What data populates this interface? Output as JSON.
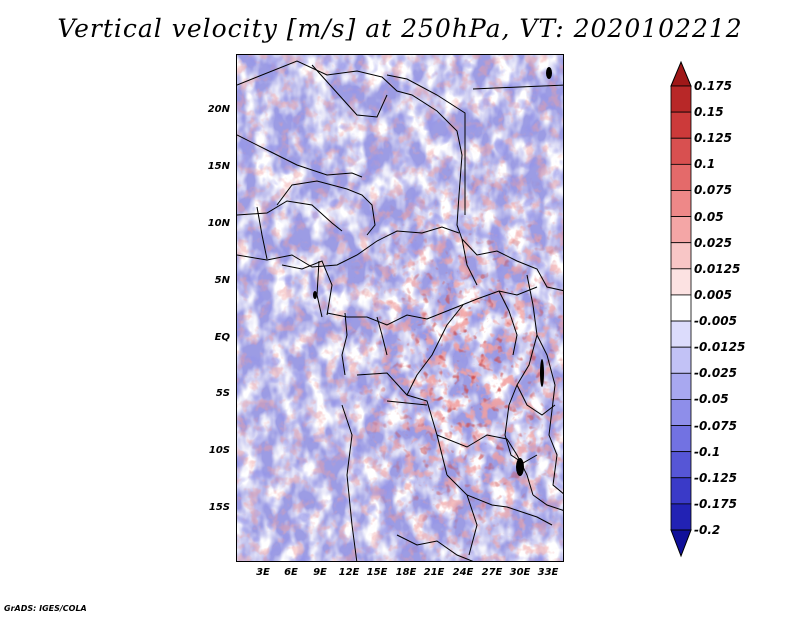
{
  "title": "Vertical velocity [m/s] at 250hPa, VT: 2020102212",
  "footer": "GrADS: IGES/COLA",
  "latitude_labels": [
    "20N",
    "15N",
    "10N",
    "5N",
    "EQ",
    "5S",
    "10S",
    "15S"
  ],
  "longitude_labels": [
    "3E",
    "6E",
    "9E",
    "12E",
    "15E",
    "18E",
    "21E",
    "24E",
    "27E",
    "30E",
    "33E"
  ],
  "colorbar": {
    "labels": [
      "0.175",
      "0.15",
      "0.125",
      "0.1",
      "0.075",
      "0.05",
      "0.025",
      "0.0125",
      "0.005",
      "-0.005",
      "-0.0125",
      "-0.025",
      "-0.05",
      "-0.075",
      "-0.1",
      "-0.125",
      "-0.175",
      "-0.2"
    ],
    "colors": [
      "#a01818",
      "#b82828",
      "#cc3a3a",
      "#d85050",
      "#e46a6a",
      "#ee8888",
      "#f4a6a6",
      "#f8c6c6",
      "#fce2e2",
      "#ffffff",
      "#dcdcfc",
      "#c2c2f6",
      "#a8a8f0",
      "#8e8eea",
      "#7272e2",
      "#5656d6",
      "#3a3ac8",
      "#2222b4",
      "#10109a"
    ]
  },
  "map": {
    "background_color": "#9c9ce4",
    "positive_color": "#e06060",
    "negative_color": "#5050d0"
  }
}
